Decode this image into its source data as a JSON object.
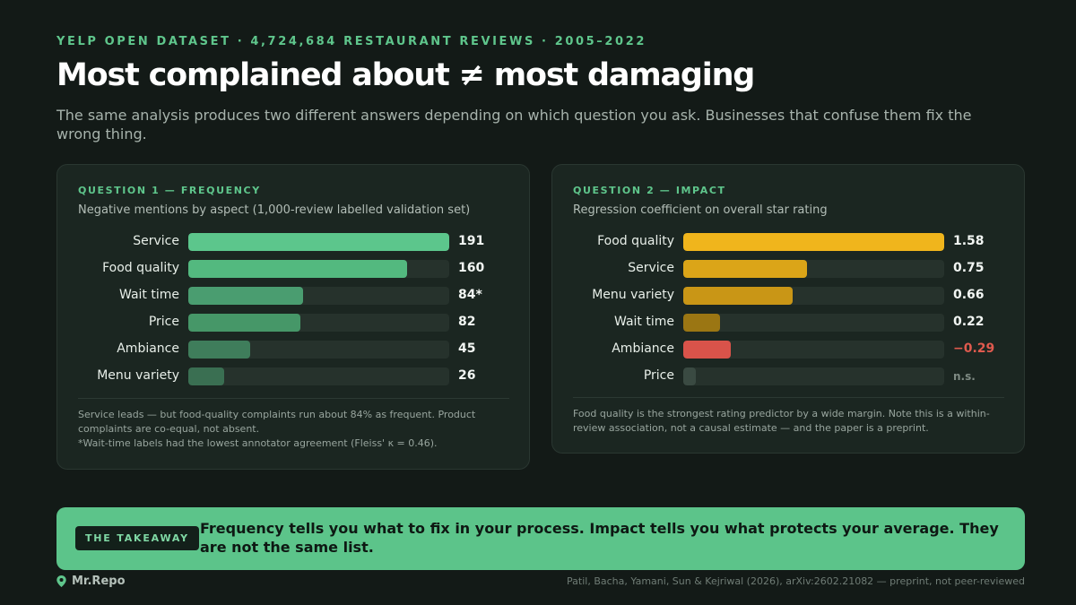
{
  "eyebrow": "YELP OPEN DATASET · 4,724,684 RESTAURANT REVIEWS · 2005–2022",
  "title": "Most complained about ≠ most damaging",
  "subtitle": "The same analysis produces two different answers depending on which question you ask. Businesses that confuse them fix the wrong thing.",
  "colors": {
    "background": "#131a17",
    "accent_green": "#5fc68c",
    "impact_gold": "#f0b51c",
    "negative_red": "#d9534a"
  },
  "chart_data": [
    {
      "type": "bar",
      "orientation": "horizontal",
      "label": "QUESTION 1 — FREQUENCY",
      "subtitle": "Negative mentions by aspect (1,000-review labelled validation set)",
      "categories": [
        "Service",
        "Food quality",
        "Wait time",
        "Price",
        "Ambiance",
        "Menu variety"
      ],
      "values": [
        191,
        160,
        84,
        82,
        45,
        26
      ],
      "value_labels": [
        "191",
        "160",
        "84*",
        "82",
        "45",
        "26"
      ],
      "xlim": [
        0,
        191
      ],
      "bar_colors": [
        "#5cc68c",
        "#53b97f",
        "#4a9d70",
        "#469768",
        "#3f7d5b",
        "#3a6f52"
      ],
      "grid": false,
      "note": "Service leads — but food-quality complaints run about 84% as frequent. Product complaints are co-equal, not absent.",
      "footnote": "*Wait-time labels had the lowest annotator agreement (Fleiss' κ = 0.46)."
    },
    {
      "type": "bar",
      "orientation": "horizontal",
      "label": "QUESTION 2 — IMPACT",
      "subtitle": "Regression coefficient on overall star rating",
      "categories": [
        "Food quality",
        "Service",
        "Menu variety",
        "Wait time",
        "Ambiance",
        "Price"
      ],
      "values": [
        1.58,
        0.75,
        0.66,
        0.22,
        -0.29,
        null
      ],
      "value_labels": [
        "1.58",
        "0.75",
        "0.66",
        "0.22",
        "−0.29",
        "n.s."
      ],
      "xlim": [
        0,
        1.58
      ],
      "bar_colors": [
        "#f0b51c",
        "#dba518",
        "#c99616",
        "#9b7613",
        "#d9534a",
        "#3a4a42"
      ],
      "grid": false,
      "note": "Food quality is the strongest rating predictor by a wide margin. Note this is a within-review association, not a causal estimate — and the paper is a preprint."
    }
  ],
  "takeaway": {
    "badge": "THE TAKEAWAY",
    "text": "Frequency tells you what to fix in your process. Impact tells you what protects your average. They are not the same list."
  },
  "footer": {
    "brand": "Mr.Repo",
    "brand_icon": "map-pin-icon",
    "citation": "Patil, Bacha, Yamani, Sun & Kejriwal (2026), arXiv:2602.21082 — preprint, not peer-reviewed"
  }
}
